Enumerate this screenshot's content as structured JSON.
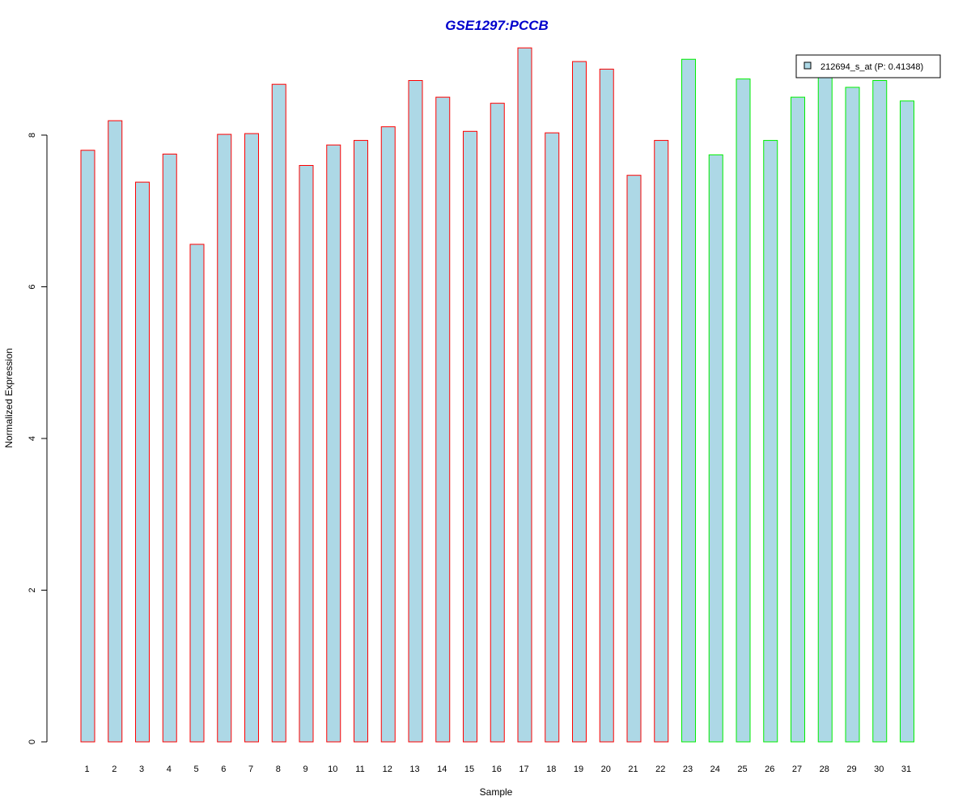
{
  "chart_data": {
    "type": "bar",
    "title": "GSE1297:PCCB",
    "xlabel": "Sample",
    "ylabel": "Normalized Expression",
    "categories": [
      "1",
      "2",
      "3",
      "4",
      "5",
      "6",
      "7",
      "8",
      "9",
      "10",
      "11",
      "12",
      "13",
      "14",
      "15",
      "16",
      "17",
      "18",
      "19",
      "20",
      "21",
      "22",
      "23",
      "24",
      "25",
      "26",
      "27",
      "28",
      "29",
      "30",
      "31"
    ],
    "values": [
      7.8,
      8.19,
      7.38,
      7.75,
      6.56,
      8.01,
      8.02,
      8.67,
      7.6,
      7.87,
      7.93,
      8.11,
      8.72,
      8.5,
      8.05,
      8.42,
      9.15,
      8.03,
      8.97,
      8.87,
      7.47,
      7.93,
      9.0,
      7.74,
      8.74,
      7.93,
      8.5,
      8.76,
      8.63,
      8.72,
      8.45
    ],
    "group_of_sample": [
      1,
      1,
      1,
      1,
      1,
      1,
      1,
      1,
      1,
      1,
      1,
      1,
      1,
      1,
      1,
      1,
      1,
      1,
      1,
      1,
      1,
      1,
      2,
      2,
      2,
      2,
      2,
      2,
      2,
      2,
      2
    ],
    "ylim": [
      0,
      9.2
    ],
    "yticks": [
      0,
      2,
      4,
      6,
      8
    ],
    "grid": false,
    "legend": {
      "position": "top-right",
      "label": "212694_s_at (P: 0.41348)"
    },
    "colors": {
      "title": "#0000cc",
      "bar_fill": "#add8e6",
      "group1_border": "#ff0000",
      "group2_border": "#00ee00",
      "axis": "#000000"
    }
  }
}
